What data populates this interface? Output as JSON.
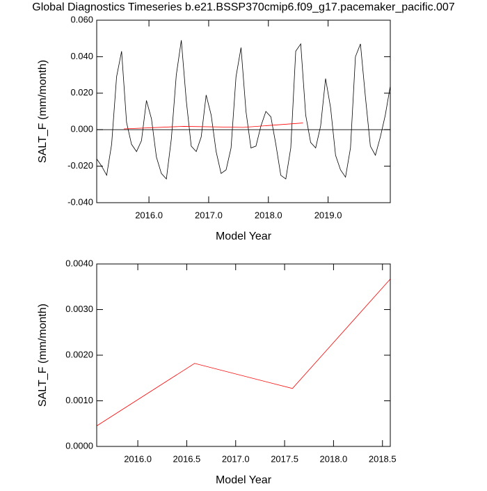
{
  "title": "Global Diagnostics Timeseries b.e21.BSSP370cmip6.f09_g17.pacemaker_pacific.007",
  "chart_data": [
    {
      "type": "line",
      "xlabel": "Model Year",
      "ylabel": "SALT_F (mm/month)",
      "xlim": [
        2015.125,
        2020.0417
      ],
      "ylim": [
        -0.04,
        0.06
      ],
      "zero_line": true,
      "xticks": [
        {
          "value": 2016,
          "label": "2016.0"
        },
        {
          "value": 2017,
          "label": "2017.0"
        },
        {
          "value": 2018,
          "label": "2018.0"
        },
        {
          "value": 2019,
          "label": "2019.0"
        }
      ],
      "yticks": [
        {
          "value": -0.04,
          "label": "-0.040"
        },
        {
          "value": -0.02,
          "label": "-0.020"
        },
        {
          "value": 0,
          "label": "0.000"
        },
        {
          "value": 0.02,
          "label": "0.020"
        },
        {
          "value": 0.04,
          "label": "0.040"
        },
        {
          "value": 0.06,
          "label": "0.060"
        }
      ],
      "series": [
        {
          "color": "#000000",
          "x": [
            2015.125,
            2015.208,
            2015.292,
            2015.375,
            2015.458,
            2015.542,
            2015.625,
            2015.708,
            2015.792,
            2015.875,
            2015.958,
            2016.042,
            2016.125,
            2016.208,
            2016.292,
            2016.375,
            2016.458,
            2016.542,
            2016.625,
            2016.708,
            2016.792,
            2016.875,
            2016.958,
            2017.042,
            2017.125,
            2017.208,
            2017.292,
            2017.375,
            2017.458,
            2017.542,
            2017.625,
            2017.708,
            2017.792,
            2017.875,
            2017.958,
            2018.042,
            2018.125,
            2018.208,
            2018.292,
            2018.375,
            2018.458,
            2018.542,
            2018.625,
            2018.708,
            2018.792,
            2018.875,
            2018.958,
            2019.042,
            2019.125,
            2019.208,
            2019.292,
            2019.375,
            2019.458,
            2019.542,
            2019.625,
            2019.708,
            2019.792,
            2019.875,
            2019.958,
            2020.042
          ],
          "values": [
            -0.016,
            -0.02,
            -0.025,
            -0.008,
            0.029,
            0.043,
            0.004,
            -0.008,
            -0.012,
            -0.006,
            0.016,
            0.006,
            -0.015,
            -0.024,
            -0.027,
            -0.005,
            0.03,
            0.049,
            0.016,
            -0.009,
            -0.012,
            -0.004,
            0.019,
            0.008,
            -0.012,
            -0.024,
            -0.022,
            -0.01,
            0.029,
            0.045,
            0.01,
            -0.01,
            -0.009,
            0.002,
            0.01,
            0.007,
            -0.008,
            -0.025,
            -0.027,
            -0.01,
            0.043,
            0.047,
            0.008,
            -0.007,
            -0.01,
            0.002,
            0.028,
            0.012,
            -0.014,
            -0.022,
            -0.026,
            -0.01,
            0.04,
            0.047,
            0.018,
            -0.009,
            -0.014,
            -0.004,
            0.008,
            0.024
          ]
        },
        {
          "color": "#ff0000",
          "x": [
            2015.58,
            2016.58,
            2017.58,
            2018.58
          ],
          "values": [
            0.00045,
            0.00182,
            0.00127,
            0.00367
          ]
        }
      ]
    },
    {
      "type": "line",
      "xlabel": "Model Year",
      "ylabel": "SALT_F (mm/month)",
      "xlim": [
        2015.58,
        2018.58
      ],
      "ylim": [
        0,
        0.004
      ],
      "xticks": [
        {
          "value": 2016,
          "label": "2016.0"
        },
        {
          "value": 2016.5,
          "label": "2016.5"
        },
        {
          "value": 2017,
          "label": "2017.0"
        },
        {
          "value": 2017.5,
          "label": "2017.5"
        },
        {
          "value": 2018,
          "label": "2018.0"
        },
        {
          "value": 2018.5,
          "label": "2018.5"
        }
      ],
      "yticks": [
        {
          "value": 0,
          "label": "0.0000"
        },
        {
          "value": 0.001,
          "label": "0.0010"
        },
        {
          "value": 0.002,
          "label": "0.0020"
        },
        {
          "value": 0.003,
          "label": "0.0030"
        },
        {
          "value": 0.004,
          "label": "0.0040"
        }
      ],
      "series": [
        {
          "color": "#ff0000",
          "x": [
            2015.58,
            2016.58,
            2017.58,
            2018.58
          ],
          "values": [
            0.00045,
            0.00182,
            0.00127,
            0.00367
          ]
        }
      ]
    }
  ]
}
